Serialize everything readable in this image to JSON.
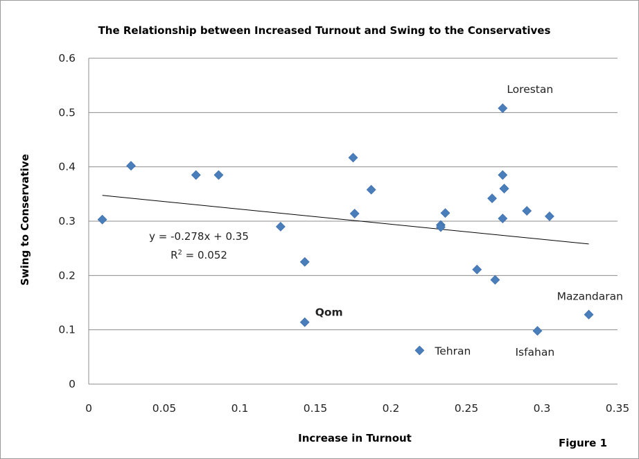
{
  "chart_data": {
    "type": "scatter",
    "title": "The Relationship between Increased Turnout and Swing to the Conservatives",
    "xlabel": "Increase in Turnout",
    "ylabel": "Swing to Conservative",
    "xlim": [
      0,
      0.35
    ],
    "ylim": [
      0,
      0.6
    ],
    "x_ticks": [
      "0",
      "0.05",
      "0.1",
      "0.15",
      "0.2",
      "0.25",
      "0.3",
      "0.35"
    ],
    "y_ticks": [
      "0",
      "0.1",
      "0.2",
      "0.3",
      "0.4",
      "0.5",
      "0.6"
    ],
    "grid": "horizontal",
    "marker_color": "#4a7ebb",
    "series": [
      {
        "x": [
          0.009,
          0.028,
          0.071,
          0.086,
          0.127,
          0.143,
          0.175,
          0.176,
          0.187,
          0.233,
          0.233,
          0.236,
          0.257,
          0.267,
          0.269,
          0.274,
          0.274,
          0.275,
          0.275,
          0.29,
          0.305,
          0.143,
          0.219,
          0.274,
          0.297,
          0.331
        ],
        "y": [
          0.303,
          0.402,
          0.385,
          0.385,
          0.29,
          0.225,
          0.417,
          0.314,
          0.358,
          0.293,
          0.289,
          0.315,
          0.211,
          0.342,
          0.192,
          0.305,
          0.385,
          0.36,
          0.36,
          0.319,
          0.309,
          0.114,
          0.062,
          0.508,
          0.098,
          0.128
        ]
      }
    ],
    "point_labels": [
      {
        "text": "Lorestan",
        "x": 0.274,
        "y": 0.508
      },
      {
        "text": "Qom",
        "x": 0.143,
        "y": 0.114
      },
      {
        "text": "Tehran",
        "x": 0.219,
        "y": 0.062
      },
      {
        "text": "Isfahan",
        "x": 0.297,
        "y": 0.098
      },
      {
        "text": "Mazandaran",
        "x": 0.331,
        "y": 0.128
      }
    ],
    "trendline": {
      "slope": -0.278,
      "intercept": 0.35,
      "x_range": [
        0.009,
        0.331
      ],
      "equation": "y = -0.278x + 0.35",
      "r_squared_prefix": "R",
      "r_squared_exponent": "2",
      "r_squared_value": " = 0.052"
    },
    "figure_label": "Figure 1"
  }
}
